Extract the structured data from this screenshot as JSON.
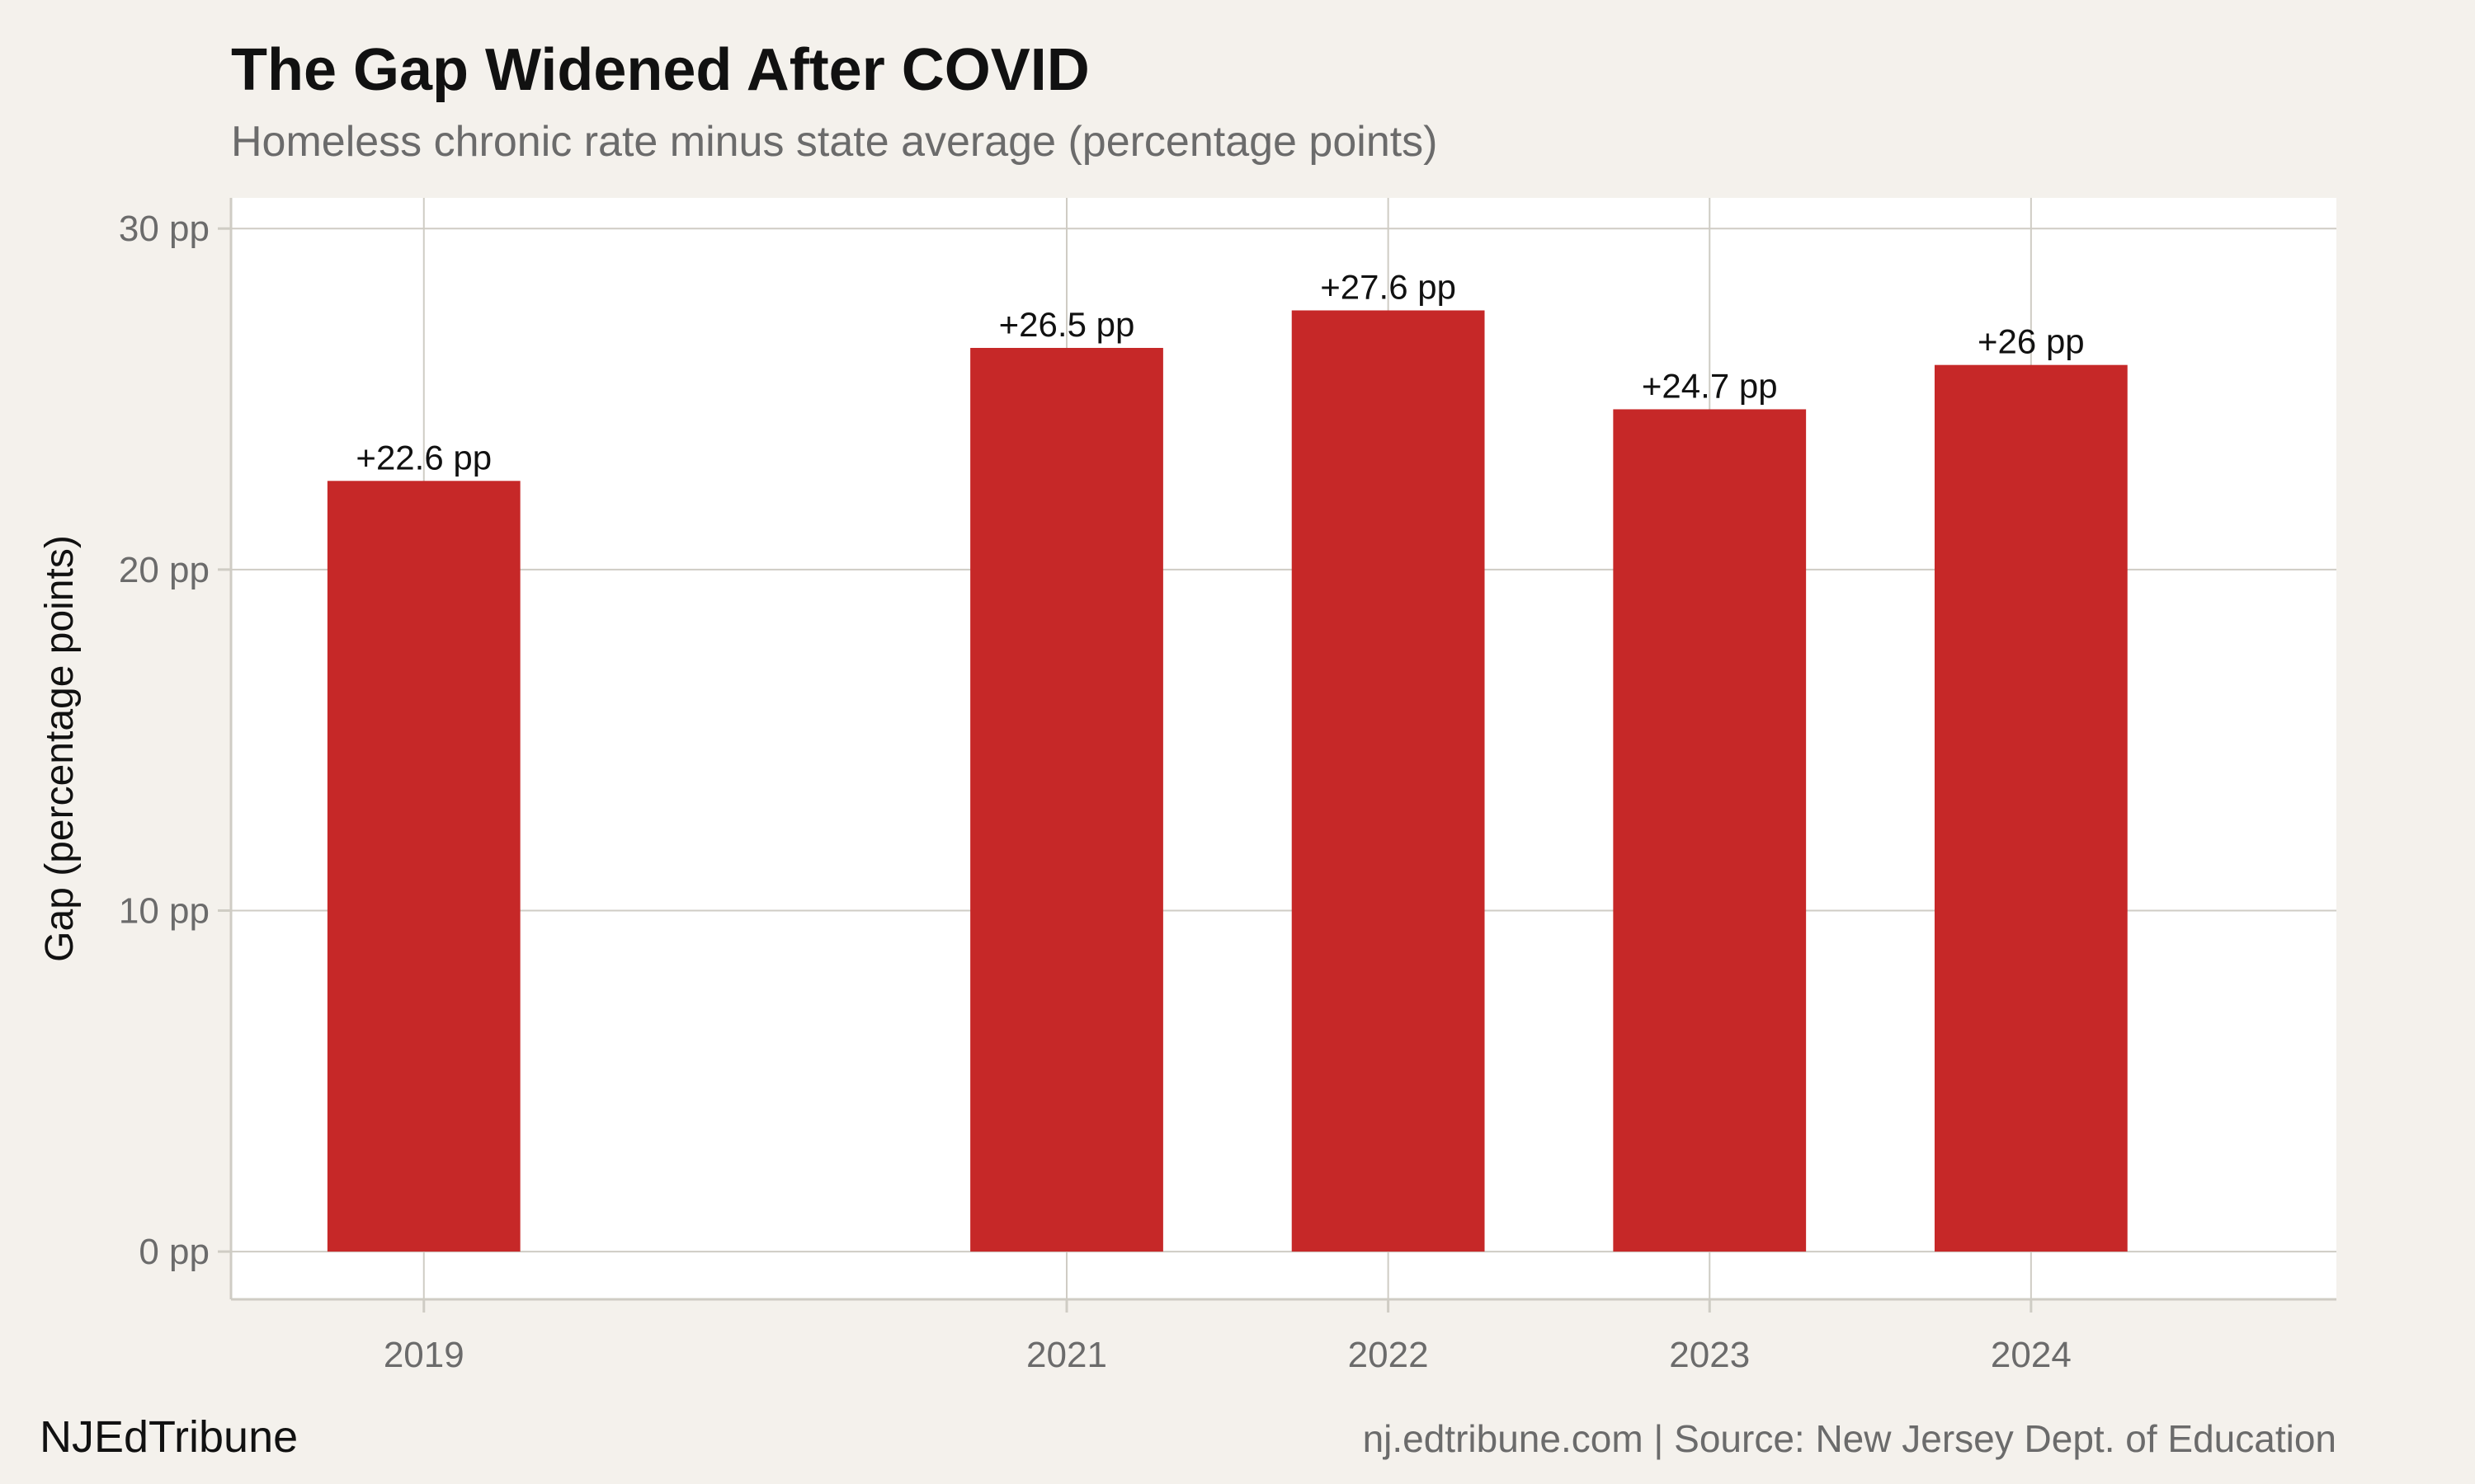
{
  "chart_data": {
    "type": "bar",
    "title": "The Gap Widened After COVID",
    "subtitle": "Homeless chronic rate minus state average (percentage points)",
    "xlabel": "",
    "ylabel": "Gap (percentage points)",
    "x": [
      2019,
      2021,
      2022,
      2023,
      2024
    ],
    "x_tick_labels": [
      "2019",
      "2021",
      "2022",
      "2023",
      "2024"
    ],
    "values": [
      22.6,
      26.5,
      27.6,
      24.7,
      26.0
    ],
    "data_labels": [
      "+22.6 pp",
      "+26.5 pp",
      "+27.6 pp",
      "+24.7 pp",
      "+26 pp"
    ],
    "xlim": [
      2018.4,
      2024.95
    ],
    "ylim": [
      -1.4,
      30.9
    ],
    "y_ticks": [
      0,
      10,
      20,
      30
    ],
    "y_tick_labels": [
      "0 pp",
      "10 pp",
      "20 pp",
      "30 pp"
    ],
    "grid": true,
    "legend": "none",
    "colors": {
      "bar": "#c62828",
      "background": "#f4f1ec",
      "panel": "#ffffff",
      "grid": "#cfccc4",
      "text": "#111111",
      "muted_text": "#6b6b6b"
    }
  },
  "footer": {
    "brand": "NJEdTribune",
    "source": "nj.edtribune.com | Source: New Jersey Dept. of Education"
  }
}
